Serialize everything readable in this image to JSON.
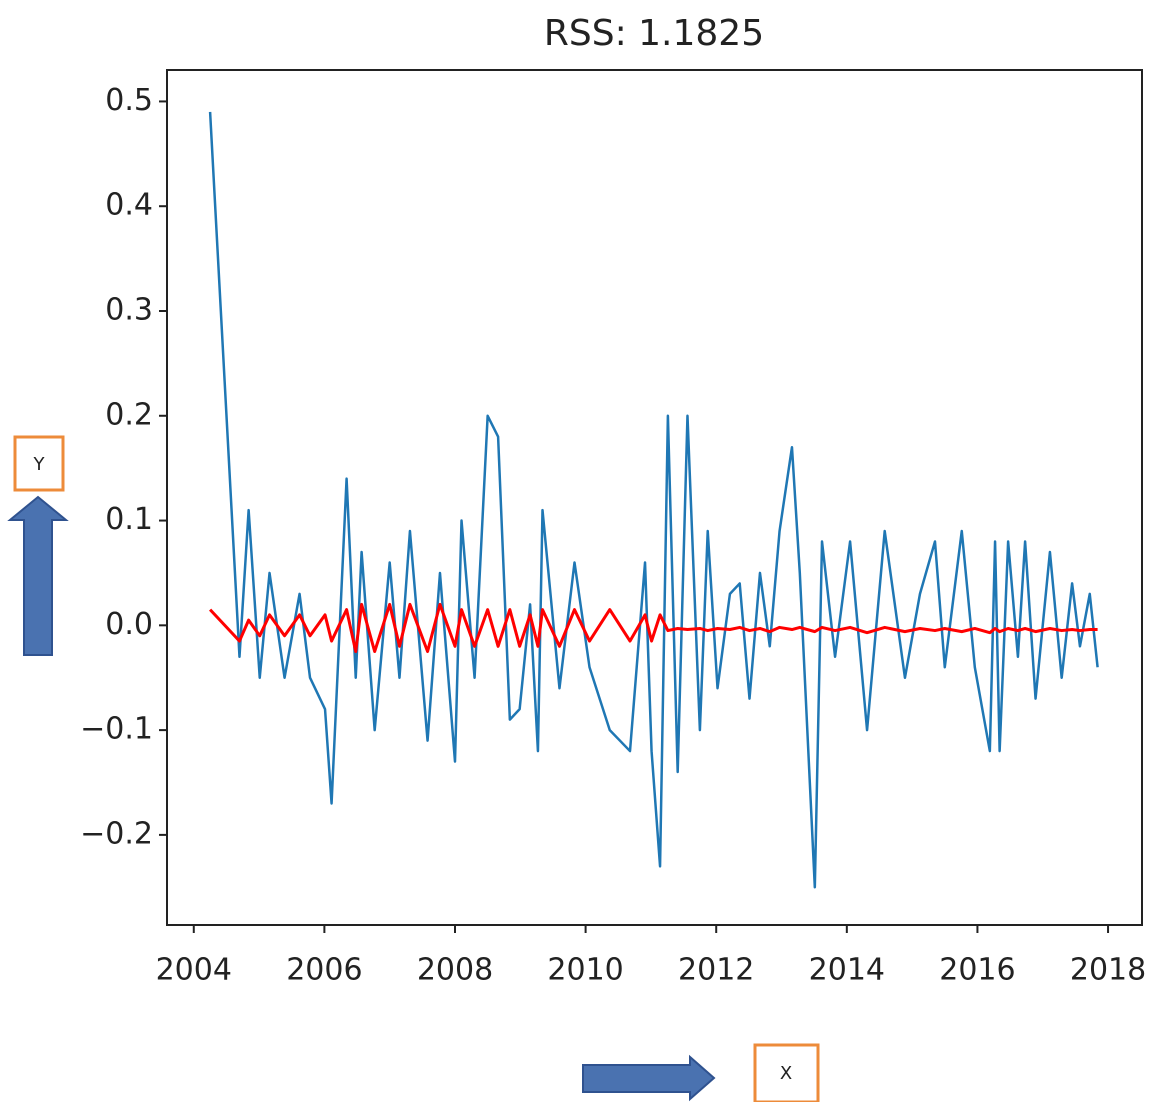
{
  "chart_data": {
    "type": "line",
    "title": "RSS: 1.1825",
    "annotations": [
      "Y",
      "X"
    ],
    "x": [
      2004.25,
      2004.7,
      2004.84,
      2005.01,
      2005.16,
      2005.39,
      2005.62,
      2005.78,
      2006.01,
      2006.11,
      2006.34,
      2006.48,
      2006.57,
      2006.77,
      2007.0,
      2007.15,
      2007.31,
      2007.58,
      2007.77,
      2008.0,
      2008.1,
      2008.3,
      2008.5,
      2008.66,
      2008.84,
      2008.99,
      2009.15,
      2009.27,
      2009.34,
      2009.6,
      2009.83,
      2010.06,
      2010.37,
      2010.68,
      2010.91,
      2011.01,
      2011.14,
      2011.26,
      2011.41,
      2011.56,
      2011.75,
      2011.87,
      2012.02,
      2012.21,
      2012.36,
      2012.51,
      2012.67,
      2012.82,
      2012.97,
      2013.16,
      2013.28,
      2013.51,
      2013.62,
      2013.82,
      2014.05,
      2014.31,
      2014.58,
      2014.89,
      2015.12,
      2015.35,
      2015.5,
      2015.76,
      2015.96,
      2016.19,
      2016.27,
      2016.34,
      2016.47,
      2016.62,
      2016.73,
      2016.89,
      2017.11,
      2017.29,
      2017.45,
      2017.57,
      2017.72,
      2017.84
    ],
    "series": [
      {
        "color": "#1f77b4",
        "values": [
          0.49,
          -0.03,
          0.11,
          -0.05,
          0.05,
          -0.05,
          0.03,
          -0.05,
          -0.08,
          -0.17,
          0.14,
          -0.05,
          0.07,
          -0.1,
          0.06,
          -0.05,
          0.09,
          -0.11,
          0.05,
          -0.13,
          0.1,
          -0.05,
          0.2,
          0.18,
          -0.09,
          -0.08,
          0.02,
          -0.12,
          0.11,
          -0.06,
          0.06,
          -0.04,
          -0.1,
          -0.12,
          0.06,
          -0.12,
          -0.23,
          0.2,
          -0.14,
          0.2,
          -0.1,
          0.09,
          -0.06,
          0.03,
          0.04,
          -0.07,
          0.05,
          -0.02,
          0.09,
          0.17,
          0.05,
          -0.25,
          0.08,
          -0.03,
          0.08,
          -0.1,
          0.09,
          -0.05,
          0.03,
          0.08,
          -0.04,
          0.09,
          -0.04,
          -0.12,
          0.08,
          -0.12,
          0.08,
          -0.03,
          0.08,
          -0.07,
          0.07,
          -0.05,
          0.04,
          -0.02,
          0.03,
          -0.04
        ]
      },
      {
        "color": "#ff0000",
        "values": [
          0.015,
          -0.015,
          0.005,
          -0.01,
          0.01,
          -0.01,
          0.01,
          -0.01,
          0.01,
          -0.015,
          0.015,
          -0.025,
          0.02,
          -0.025,
          0.02,
          -0.02,
          0.02,
          -0.025,
          0.02,
          -0.02,
          0.015,
          -0.02,
          0.015,
          -0.02,
          0.015,
          -0.02,
          0.01,
          -0.02,
          0.015,
          -0.02,
          0.015,
          -0.015,
          0.015,
          -0.015,
          0.01,
          -0.015,
          0.01,
          -0.005,
          -0.003,
          -0.004,
          -0.003,
          -0.005,
          -0.003,
          -0.004,
          -0.002,
          -0.005,
          -0.003,
          -0.006,
          -0.002,
          -0.004,
          -0.002,
          -0.006,
          -0.002,
          -0.005,
          -0.002,
          -0.007,
          -0.002,
          -0.006,
          -0.003,
          -0.005,
          -0.003,
          -0.006,
          -0.003,
          -0.007,
          -0.003,
          -0.006,
          -0.003,
          -0.005,
          -0.003,
          -0.006,
          -0.003,
          -0.005,
          -0.004,
          -0.005,
          -0.004,
          -0.004
        ]
      }
    ],
    "xlim": [
      2003.59,
      2018.52
    ],
    "ylim": [
      -0.286,
      0.53
    ],
    "xticks": [
      2004,
      2006,
      2008,
      2010,
      2012,
      2014,
      2016,
      2018
    ],
    "yticks": [
      {
        "value": -0.2,
        "label": "−0.2"
      },
      {
        "value": -0.1,
        "label": "−0.1"
      },
      {
        "value": 0,
        "label": "0.0"
      },
      0.1,
      0.2,
      0.3,
      0.4,
      0.5
    ],
    "grid": false
  }
}
